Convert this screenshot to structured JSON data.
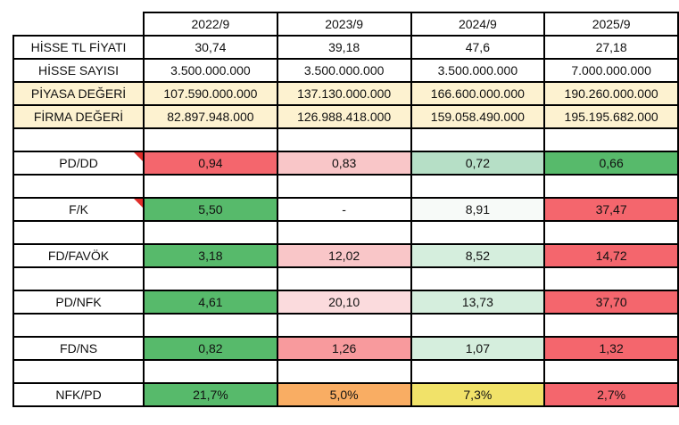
{
  "colors": {
    "cream": "#fdf2d0",
    "green": "#57ba6b",
    "red": "#f4666d",
    "salmon": "#f89a9d",
    "pink": "#f9c6c8",
    "light_pink": "#fbdbdd",
    "mint": "#d5eedd",
    "mint_strong": "#b6dfc6",
    "near_white": "#f7faf8",
    "white": "#ffffff",
    "orange": "#f9ad63",
    "yellow": "#f1e269",
    "comment_marker": "#e02e2a",
    "border": "#000000"
  },
  "table": {
    "corner_label": "",
    "columns": [
      "2022/9",
      "2023/9",
      "2024/9",
      "2025/9"
    ],
    "rows": [
      {
        "label": "HİSSE TL FİYATI",
        "values": [
          "30,74",
          "39,18",
          "47,6",
          "27,18"
        ],
        "bg": [
          "white",
          "white",
          "white",
          "white"
        ],
        "label_bg": "white",
        "comment": false
      },
      {
        "label": "HİSSE SAYISI",
        "values": [
          "3.500.000.000",
          "3.500.000.000",
          "3.500.000.000",
          "7.000.000.000"
        ],
        "bg": [
          "white",
          "white",
          "white",
          "white"
        ],
        "label_bg": "white",
        "comment": false
      },
      {
        "label": "PİYASA DEĞERİ",
        "values": [
          "107.590.000.000",
          "137.130.000.000",
          "166.600.000.000",
          "190.260.000.000"
        ],
        "bg": [
          "cream",
          "cream",
          "cream",
          "cream"
        ],
        "label_bg": "cream",
        "comment": false
      },
      {
        "label": "FİRMA DEĞERİ",
        "values": [
          "82.897.948.000",
          "126.988.418.000",
          "159.058.490.000",
          "195.195.682.000"
        ],
        "bg": [
          "cream",
          "cream",
          "cream",
          "cream"
        ],
        "label_bg": "cream",
        "comment": false
      },
      {
        "label": "",
        "values": [
          "",
          "",
          "",
          ""
        ],
        "bg": [
          "white",
          "white",
          "white",
          "white"
        ],
        "label_bg": "white",
        "comment": false
      },
      {
        "label": "PD/DD",
        "values": [
          "0,94",
          "0,83",
          "0,72",
          "0,66"
        ],
        "bg": [
          "red",
          "pink",
          "mint_strong",
          "green"
        ],
        "label_bg": "white",
        "comment": true
      },
      {
        "label": "",
        "values": [
          "",
          "",
          "",
          ""
        ],
        "bg": [
          "white",
          "white",
          "white",
          "white"
        ],
        "label_bg": "white",
        "comment": false
      },
      {
        "label": "F/K",
        "values": [
          "5,50",
          "-",
          "8,91",
          "37,47"
        ],
        "bg": [
          "green",
          "white",
          "near_white",
          "red"
        ],
        "label_bg": "white",
        "comment": true
      },
      {
        "label": "",
        "values": [
          "",
          "",
          "",
          ""
        ],
        "bg": [
          "white",
          "white",
          "white",
          "white"
        ],
        "label_bg": "white",
        "comment": false
      },
      {
        "label": "FD/FAVÖK",
        "values": [
          "3,18",
          "12,02",
          "8,52",
          "14,72"
        ],
        "bg": [
          "green",
          "pink",
          "mint",
          "red"
        ],
        "label_bg": "white",
        "comment": false
      },
      {
        "label": "",
        "values": [
          "",
          "",
          "",
          ""
        ],
        "bg": [
          "white",
          "white",
          "white",
          "white"
        ],
        "label_bg": "white",
        "comment": false
      },
      {
        "label": "PD/NFK",
        "values": [
          "4,61",
          "20,10",
          "13,73",
          "37,70"
        ],
        "bg": [
          "green",
          "light_pink",
          "mint",
          "red"
        ],
        "label_bg": "white",
        "comment": false
      },
      {
        "label": "",
        "values": [
          "",
          "",
          "",
          ""
        ],
        "bg": [
          "white",
          "white",
          "white",
          "white"
        ],
        "label_bg": "white",
        "comment": false
      },
      {
        "label": "FD/NS",
        "values": [
          "0,82",
          "1,26",
          "1,07",
          "1,32"
        ],
        "bg": [
          "green",
          "salmon",
          "mint",
          "red"
        ],
        "label_bg": "white",
        "comment": false
      },
      {
        "label": "",
        "values": [
          "",
          "",
          "",
          ""
        ],
        "bg": [
          "white",
          "white",
          "white",
          "white"
        ],
        "label_bg": "white",
        "comment": false
      },
      {
        "label": "NFK/PD",
        "values": [
          "21,7%",
          "5,0%",
          "7,3%",
          "2,7%"
        ],
        "bg": [
          "green",
          "orange",
          "yellow",
          "red"
        ],
        "label_bg": "white",
        "comment": false
      }
    ]
  },
  "chart_data": {
    "type": "table",
    "title": "Hisse değerleme çarpanları tablosu",
    "columns": [
      "2022/9",
      "2023/9",
      "2024/9",
      "2025/9"
    ],
    "rows": [
      {
        "label": "HİSSE TL FİYATI",
        "values": [
          30.74,
          39.18,
          47.6,
          27.18
        ]
      },
      {
        "label": "HİSSE SAYISI",
        "values": [
          3500000000,
          3500000000,
          3500000000,
          7000000000
        ]
      },
      {
        "label": "PİYASA DEĞERİ",
        "values": [
          107590000000,
          137130000000,
          166600000000,
          190260000000
        ]
      },
      {
        "label": "FİRMA DEĞERİ",
        "values": [
          82897948000,
          126988418000,
          159058490000,
          195195682000
        ]
      },
      {
        "label": "PD/DD",
        "values": [
          0.94,
          0.83,
          0.72,
          0.66
        ]
      },
      {
        "label": "F/K",
        "values": [
          5.5,
          null,
          8.91,
          37.47
        ]
      },
      {
        "label": "FD/FAVÖK",
        "values": [
          3.18,
          12.02,
          8.52,
          14.72
        ]
      },
      {
        "label": "PD/NFK",
        "values": [
          4.61,
          20.1,
          13.73,
          37.7
        ]
      },
      {
        "label": "FD/NS",
        "values": [
          0.82,
          1.26,
          1.07,
          1.32
        ]
      },
      {
        "label": "NFK/PD",
        "values": [
          "21,7%",
          "5,0%",
          "7,3%",
          "2,7%"
        ]
      }
    ],
    "layout": {
      "conditional_formatting": "green=low/cheap, red=high/expensive per ratio row; NFK/PD row green=high yield, red=low yield",
      "highlighted_rows_cream": [
        "PİYASA DEĞERİ",
        "FİRMA DEĞERİ"
      ],
      "comment_markers_on": [
        "PD/DD",
        "F/K"
      ]
    }
  }
}
